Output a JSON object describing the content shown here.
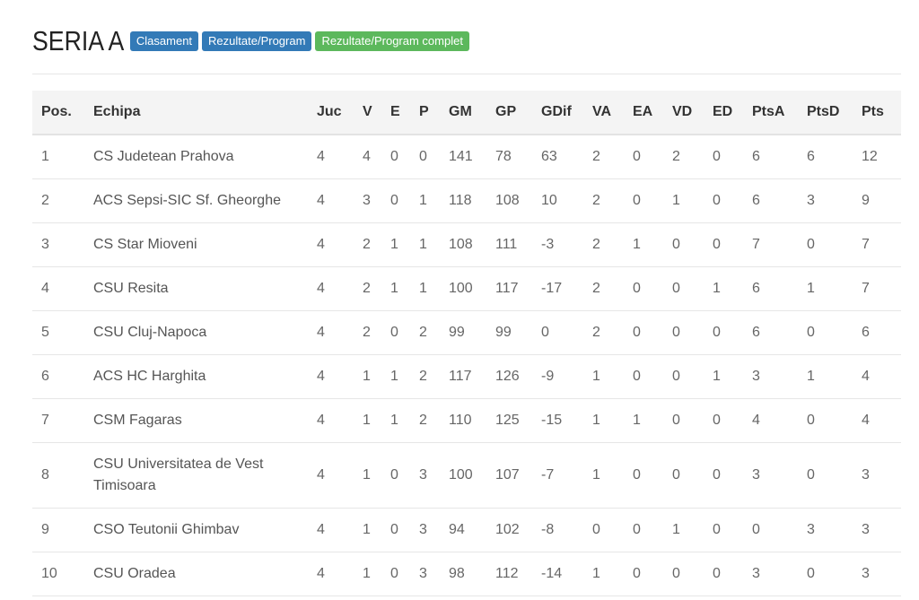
{
  "page": {
    "title": "SERIA A",
    "buttons": [
      {
        "label": "Clasament",
        "color": "#337ab7"
      },
      {
        "label": "Rezultate/Program",
        "color": "#337ab7"
      },
      {
        "label": "Rezultate/Program complet",
        "color": "#5cb85c"
      }
    ]
  },
  "table": {
    "headers": [
      "Pos.",
      "Echipa",
      "Juc",
      "V",
      "E",
      "P",
      "GM",
      "GP",
      "GDif",
      "VA",
      "EA",
      "VD",
      "ED",
      "PtsA",
      "PtsD",
      "Pts"
    ],
    "rows": [
      [
        "1",
        "CS Judetean Prahova",
        "4",
        "4",
        "0",
        "0",
        "141",
        "78",
        "63",
        "2",
        "0",
        "2",
        "0",
        "6",
        "6",
        "12"
      ],
      [
        "2",
        "ACS Sepsi-SIC Sf. Gheorghe",
        "4",
        "3",
        "0",
        "1",
        "118",
        "108",
        "10",
        "2",
        "0",
        "1",
        "0",
        "6",
        "3",
        "9"
      ],
      [
        "3",
        "CS Star Mioveni",
        "4",
        "2",
        "1",
        "1",
        "108",
        "111",
        "-3",
        "2",
        "1",
        "0",
        "0",
        "7",
        "0",
        "7"
      ],
      [
        "4",
        "CSU Resita",
        "4",
        "2",
        "1",
        "1",
        "100",
        "117",
        "-17",
        "2",
        "0",
        "0",
        "1",
        "6",
        "1",
        "7"
      ],
      [
        "5",
        "CSU Cluj-Napoca",
        "4",
        "2",
        "0",
        "2",
        "99",
        "99",
        "0",
        "2",
        "0",
        "0",
        "0",
        "6",
        "0",
        "6"
      ],
      [
        "6",
        "ACS HC Harghita",
        "4",
        "1",
        "1",
        "2",
        "117",
        "126",
        "-9",
        "1",
        "0",
        "0",
        "1",
        "3",
        "1",
        "4"
      ],
      [
        "7",
        "CSM Fagaras",
        "4",
        "1",
        "1",
        "2",
        "110",
        "125",
        "-15",
        "1",
        "1",
        "0",
        "0",
        "4",
        "0",
        "4"
      ],
      [
        "8",
        "CSU Universitatea de Vest Timisoara",
        "4",
        "1",
        "0",
        "3",
        "100",
        "107",
        "-7",
        "1",
        "0",
        "0",
        "0",
        "3",
        "0",
        "3"
      ],
      [
        "9",
        "CSO Teutonii Ghimbav",
        "4",
        "1",
        "0",
        "3",
        "94",
        "102",
        "-8",
        "0",
        "0",
        "1",
        "0",
        "0",
        "3",
        "3"
      ],
      [
        "10",
        "CSU Oradea",
        "4",
        "1",
        "0",
        "3",
        "98",
        "112",
        "-14",
        "1",
        "0",
        "0",
        "0",
        "3",
        "0",
        "3"
      ]
    ]
  }
}
